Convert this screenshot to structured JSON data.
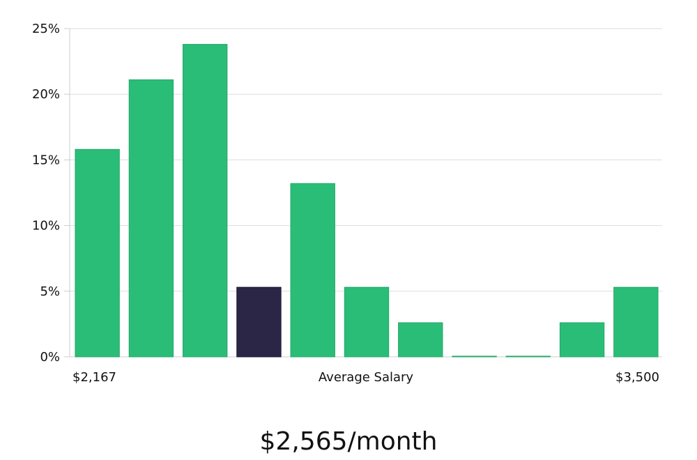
{
  "chart_data": {
    "type": "bar",
    "categories": [
      "bin-1",
      "bin-2",
      "bin-3",
      "bin-4",
      "bin-5",
      "bin-6",
      "bin-7",
      "bin-8",
      "bin-9",
      "bin-10",
      "bin-11"
    ],
    "values": [
      15.8,
      21.1,
      23.8,
      5.3,
      13.2,
      5.3,
      2.6,
      0,
      0,
      2.6,
      5.3
    ],
    "highlight_index": 3,
    "ylim": [
      0,
      25
    ],
    "yticks": [
      0,
      5,
      10,
      15,
      20,
      25
    ],
    "ytick_format": "{v}%",
    "grid": true,
    "x_min_label": "$2,167",
    "x_center_label": "Average Salary",
    "x_max_label": "$3,500"
  },
  "headline": "$2,565/month",
  "colors": {
    "bar": "#2abd77",
    "bar_highlight": "#2b2546",
    "grid": "#dddddd",
    "axis": "#cccccc",
    "text": "#111111"
  }
}
